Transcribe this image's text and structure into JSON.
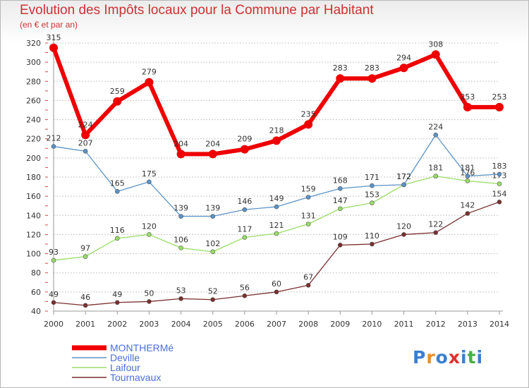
{
  "header": {
    "title": "Evolution des Impôts locaux pour la Commune par Habitant",
    "subtitle": "(en € et par an)"
  },
  "logo": {
    "text": "Proxiti",
    "colors": [
      "#3a7fd0",
      "#e8902a",
      "#3a7fd0",
      "#e03030",
      "#3a7fd0",
      "#49b04a",
      "#3a7fd0"
    ]
  },
  "chart_data": {
    "type": "line",
    "x": [
      "2000",
      "2001",
      "2002",
      "2003",
      "2004",
      "2005",
      "2006",
      "2007",
      "2008",
      "2009",
      "2010",
      "2011",
      "2012",
      "2013",
      "2014"
    ],
    "ylim": [
      40,
      320
    ],
    "yticks": [
      40,
      60,
      80,
      100,
      120,
      140,
      160,
      180,
      200,
      220,
      240,
      260,
      280,
      300,
      320
    ],
    "grid": "horizontal",
    "legend_position": "bottom-left",
    "series": [
      {
        "name": "MONTHERMé",
        "color": "#ee0000",
        "label_color": "#4a6fd8",
        "values": [
          315,
          224,
          259,
          279,
          204,
          204,
          209,
          218,
          235,
          283,
          283,
          294,
          308,
          253,
          253
        ]
      },
      {
        "name": "Deville",
        "color": "#5b93c7",
        "label_color": "#4a6fd8",
        "values": [
          212,
          207,
          165,
          175,
          139,
          139,
          146,
          149,
          159,
          168,
          171,
          172,
          224,
          181,
          183
        ]
      },
      {
        "name": "Laifour",
        "color": "#99dd66",
        "label_color": "#4a6fd8",
        "values": [
          93,
          97,
          116,
          120,
          106,
          102,
          117,
          121,
          131,
          147,
          153,
          172,
          181,
          176,
          173
        ]
      },
      {
        "name": "Tournavaux",
        "color": "#7a2e2e",
        "label_color": "#4a6fd8",
        "values": [
          49,
          46,
          49,
          50,
          53,
          52,
          56,
          60,
          67,
          109,
          110,
          120,
          122,
          142,
          154
        ]
      }
    ]
  }
}
